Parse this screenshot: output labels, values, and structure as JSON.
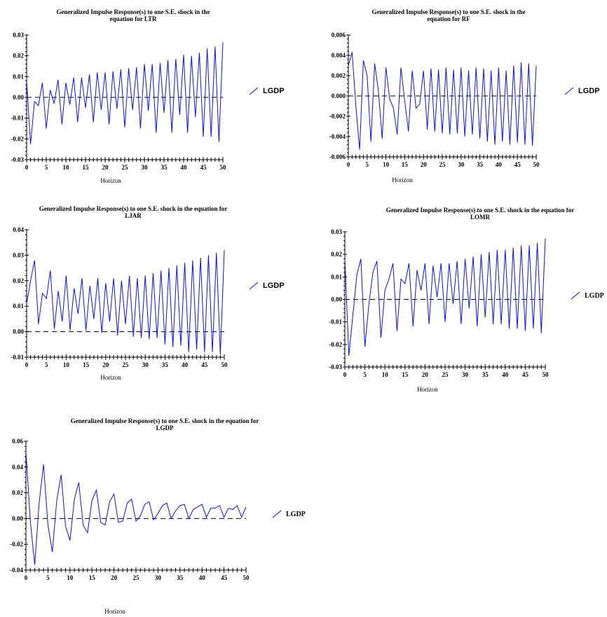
{
  "line_color": "#1010dd",
  "chart_data": [
    {
      "type": "line",
      "title_lines": [
        "Generalized Impulse Response(s) to one S.E. shock in the",
        "equation for LTR"
      ],
      "xlabel": "Horizon",
      "xlim": [
        0,
        50
      ],
      "ylim": [
        -0.03,
        0.03
      ],
      "x_ticks": [
        0,
        5,
        10,
        15,
        20,
        25,
        30,
        35,
        40,
        45,
        50
      ],
      "y_ticks": [
        -0.03,
        -0.02,
        -0.01,
        0.0,
        0.01,
        0.02,
        0.03
      ],
      "y_tick_labels": [
        "-0.03",
        "-0.02",
        "-0.01",
        "0.00",
        "0.01",
        "0.02",
        "0.03"
      ],
      "zero_line": true,
      "legend": "LGDP",
      "series": [
        {
          "name": "LGDP",
          "values": [
            0.008,
            -0.0225,
            -0.002,
            -0.004,
            0.007,
            -0.015,
            0.0035,
            -0.003,
            0.0085,
            -0.013,
            0.007,
            -0.0035,
            0.0095,
            -0.012,
            0.0095,
            -0.005,
            0.011,
            -0.012,
            0.012,
            -0.006,
            0.012,
            -0.013,
            0.0125,
            -0.0055,
            0.0135,
            -0.0145,
            0.014,
            -0.006,
            0.0145,
            -0.015,
            0.016,
            -0.0065,
            0.016,
            -0.017,
            0.0165,
            -0.0075,
            0.018,
            -0.017,
            0.0185,
            -0.0085,
            0.0205,
            -0.017,
            0.02,
            -0.0095,
            0.0215,
            -0.019,
            0.0235,
            -0.019,
            0.0245,
            -0.0215,
            0.0265
          ]
        }
      ]
    },
    {
      "type": "line",
      "title_lines": [
        "Generalized Impulse Response(s) to one S.E. shock in the",
        "equation for RF"
      ],
      "xlabel": "Horizon",
      "xlim": [
        0,
        50
      ],
      "ylim": [
        -0.006,
        0.006
      ],
      "x_ticks": [
        0,
        5,
        10,
        15,
        20,
        25,
        30,
        35,
        40,
        45,
        50
      ],
      "y_ticks": [
        -0.006,
        -0.004,
        -0.002,
        0.0,
        0.002,
        0.004,
        0.006
      ],
      "y_tick_labels": [
        "-0.006",
        "-0.004",
        "-0.002",
        "0.000",
        "0.002",
        "0.004",
        "0.006"
      ],
      "zero_line": true,
      "legend": "LGDP",
      "series": [
        {
          "name": "LGDP",
          "values": [
            0.003,
            0.0043,
            -0.001,
            -0.0053,
            0.0035,
            0.002,
            -0.0045,
            0.0032,
            0.0005,
            -0.0042,
            0.0028,
            -0.0003,
            -0.0012,
            -0.0038,
            0.0028,
            -0.0005,
            -0.0035,
            0.0025,
            -0.0012,
            -0.0008,
            0.0025,
            -0.0033,
            0.0027,
            -0.0035,
            0.0026,
            -0.0037,
            0.0028,
            -0.0038,
            0.0026,
            -0.0037,
            0.0028,
            -0.004,
            0.0025,
            -0.0038,
            0.0028,
            -0.0042,
            0.0027,
            -0.0045,
            0.0025,
            -0.0048,
            0.0028,
            -0.0045,
            0.0025,
            -0.0048,
            0.003,
            -0.0046,
            0.0033,
            -0.0048,
            0.0032,
            -0.0049,
            0.003
          ]
        }
      ]
    },
    {
      "type": "line",
      "title_lines": [
        "Generalized Impulse Response(s) to one S.E. shock in the equation for",
        "LJAR"
      ],
      "xlabel": "Horizon",
      "xlim": [
        0,
        50
      ],
      "ylim": [
        -0.01,
        0.04
      ],
      "x_ticks": [
        0,
        5,
        10,
        15,
        20,
        25,
        30,
        35,
        40,
        45,
        50
      ],
      "y_ticks": [
        -0.01,
        0.0,
        0.01,
        0.02,
        0.03,
        0.04
      ],
      "y_tick_labels": [
        "-0.01",
        "0.00",
        "0.01",
        "0.02",
        "0.03",
        "0.04"
      ],
      "zero_line": true,
      "legend": "LGDP",
      "series": [
        {
          "name": "LGDP",
          "values": [
            0.011,
            0.02,
            0.028,
            0.003,
            0.015,
            0.013,
            0.024,
            0.001,
            0.016,
            0.004,
            0.022,
            0.0005,
            0.017,
            0.007,
            0.021,
            0.0005,
            0.018,
            0.005,
            0.021,
            -0.0005,
            0.019,
            0.004,
            0.021,
            -0.0015,
            0.02,
            0.003,
            0.022,
            -0.002,
            0.021,
            -0.0025,
            0.022,
            -0.003,
            0.023,
            -0.0025,
            0.024,
            -0.005,
            0.025,
            -0.006,
            0.026,
            -0.0055,
            0.027,
            -0.008,
            0.028,
            -0.007,
            0.029,
            -0.008,
            0.03,
            -0.008,
            0.031,
            -0.009,
            0.032
          ]
        }
      ]
    },
    {
      "type": "line",
      "title_lines": [
        "Generalized Impulse Response(s) to one S.E. shock in the equation for",
        "LOMR"
      ],
      "xlabel": "Horizon",
      "xlim": [
        0,
        50
      ],
      "ylim": [
        -0.03,
        0.03
      ],
      "x_ticks": [
        0,
        5,
        10,
        15,
        20,
        25,
        30,
        35,
        40,
        45,
        50
      ],
      "y_ticks": [
        -0.03,
        -0.02,
        -0.01,
        0.0,
        0.01,
        0.02,
        0.03
      ],
      "y_tick_labels": [
        "-0.03",
        "-0.02",
        "-0.01",
        "0.00",
        "0.01",
        "0.02",
        "0.03"
      ],
      "zero_line": true,
      "legend": "LGDP",
      "series": [
        {
          "name": "LGDP",
          "values": [
            0.018,
            -0.025,
            -0.007,
            0.011,
            0.018,
            -0.021,
            -0.002,
            0.012,
            0.017,
            -0.017,
            0.004,
            0.009,
            0.016,
            -0.014,
            0.009,
            0.007,
            0.016,
            -0.012,
            0.013,
            0.004,
            0.016,
            -0.011,
            0.015,
            0.001,
            0.016,
            -0.01,
            0.016,
            -0.002,
            0.017,
            -0.011,
            0.018,
            -0.004,
            0.019,
            -0.012,
            0.02,
            -0.008,
            0.021,
            -0.011,
            0.022,
            -0.011,
            0.022,
            -0.013,
            0.023,
            -0.013,
            0.024,
            -0.014,
            0.024,
            -0.013,
            0.025,
            -0.015,
            0.027
          ]
        }
      ]
    },
    {
      "type": "line",
      "title_lines": [
        "Generalized Impulse Response(s) to one S.E. shock in the equation for",
        "LGDP"
      ],
      "xlabel": "Horizon",
      "xlim": [
        0,
        50
      ],
      "ylim": [
        -0.04,
        0.06
      ],
      "x_ticks": [
        0,
        5,
        10,
        15,
        20,
        25,
        30,
        35,
        40,
        45,
        50
      ],
      "y_ticks": [
        -0.04,
        -0.02,
        0.0,
        0.02,
        0.04,
        0.06
      ],
      "y_tick_labels": [
        "-0.04",
        "-0.02",
        "0.00",
        "0.02",
        "0.04",
        "0.06"
      ],
      "zero_line": true,
      "legend": "LGDP",
      "series": [
        {
          "name": "LGDP",
          "values": [
            0.052,
            -0.002,
            -0.036,
            0.012,
            0.042,
            -0.005,
            -0.026,
            0.014,
            0.034,
            -0.006,
            -0.017,
            0.015,
            0.028,
            -0.005,
            -0.011,
            0.014,
            0.022,
            -0.003,
            -0.005,
            0.013,
            0.019,
            -0.003,
            -0.002,
            0.012,
            0.015,
            -0.002,
            0.002,
            0.011,
            0.013,
            -0.001,
            0.004,
            0.01,
            0.012,
            0.0,
            0.006,
            0.01,
            0.011,
            0.0,
            0.007,
            0.009,
            0.011,
            0.001,
            0.008,
            0.008,
            0.01,
            0.001,
            0.008,
            0.007,
            0.01,
            0.001,
            0.009
          ]
        }
      ]
    }
  ]
}
